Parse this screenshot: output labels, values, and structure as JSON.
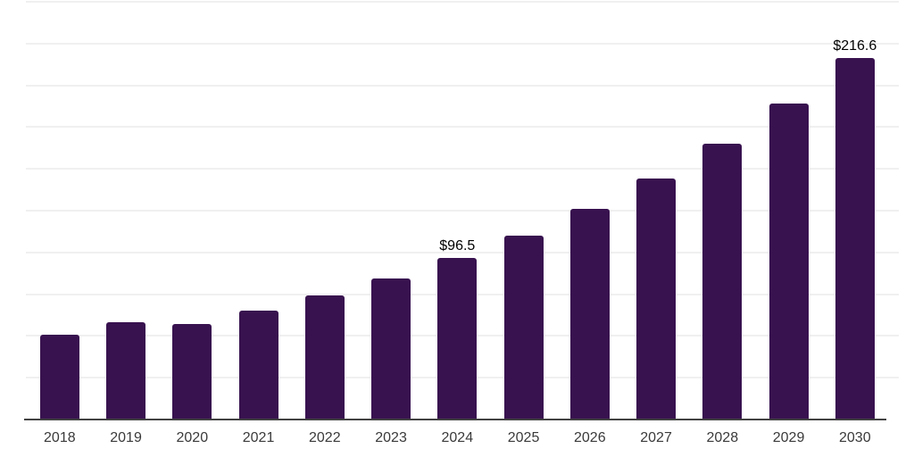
{
  "chart_data": {
    "type": "bar",
    "title": "",
    "xlabel": "",
    "ylabel": "",
    "categories": [
      "2018",
      "2019",
      "2020",
      "2021",
      "2022",
      "2023",
      "2024",
      "2025",
      "2026",
      "2027",
      "2028",
      "2029",
      "2030"
    ],
    "values": [
      50.6,
      58.3,
      57.2,
      65.0,
      74.0,
      84.4,
      96.5,
      110.0,
      126.0,
      144.1,
      165.0,
      188.9,
      216.6
    ],
    "data_labels": {
      "2024": "$96.5",
      "2030": "$216.6"
    },
    "ylim": [
      0,
      250
    ],
    "grid_step": 25,
    "grid": true,
    "legend": false,
    "colors": {
      "bar": "#38124F",
      "gridline": "#F0F0F0",
      "axis_line": "#424242",
      "tick_label": "#3A3A3A",
      "data_label": "#000000",
      "background": "#FFFFFF"
    }
  }
}
